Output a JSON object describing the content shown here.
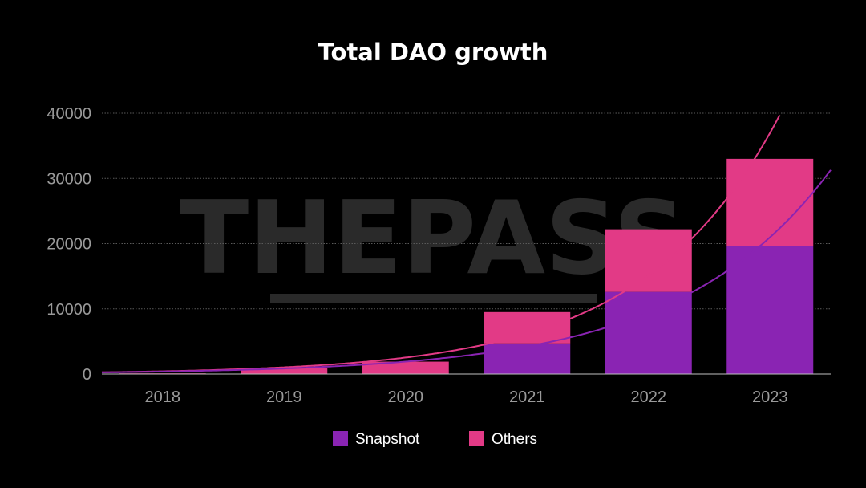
{
  "chart_data": {
    "type": "bar",
    "stacked": true,
    "title": "Total DAO growth",
    "xlabel": "",
    "ylabel": "",
    "categories": [
      "2018",
      "2019",
      "2020",
      "2021",
      "2022",
      "2023"
    ],
    "series": [
      {
        "name": "Snapshot",
        "color": "#8a24b3",
        "values": [
          0,
          0,
          0,
          4700,
          12600,
          19600
        ]
      },
      {
        "name": "Others",
        "color": "#e23a86",
        "values": [
          100,
          900,
          1900,
          4800,
          9600,
          13400
        ]
      }
    ],
    "trendlines": [
      {
        "color": "#e23a86",
        "description": "exponential trend, total"
      },
      {
        "color": "#8a24b3",
        "description": "exponential trend, Snapshot"
      }
    ],
    "ylim": [
      0,
      40000
    ],
    "yticks": [
      0,
      10000,
      20000,
      30000,
      40000
    ],
    "grid": true,
    "legend_position": "bottom-center",
    "background": "#000000"
  },
  "watermark": {
    "text": "THEPASS",
    "color": "#2a2a2a"
  }
}
